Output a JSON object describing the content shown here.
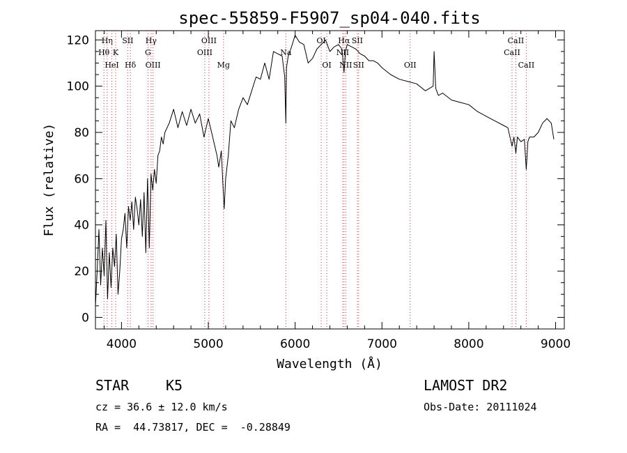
{
  "chart_data": {
    "type": "line",
    "title": "spec-55859-F5907_sp04-040.fits",
    "xlabel": "Wavelength (Å)",
    "ylabel": "Flux (relative)",
    "xlim": [
      3700,
      9100
    ],
    "ylim": [
      -5,
      124
    ],
    "x_ticks": [
      4000,
      5000,
      6000,
      7000,
      8000,
      9000
    ],
    "y_ticks": [
      0,
      20,
      40,
      60,
      80,
      100,
      120
    ],
    "grid": false,
    "series": [
      {
        "x": [
          3700,
          3720,
          3740,
          3760,
          3780,
          3800,
          3820,
          3840,
          3860,
          3880,
          3900,
          3920,
          3940,
          3960,
          3980,
          4000,
          4020,
          4040,
          4060,
          4080,
          4100,
          4120,
          4140,
          4160,
          4180,
          4200,
          4220,
          4240,
          4260,
          4280,
          4300,
          4320,
          4340,
          4360,
          4380,
          4400,
          4420,
          4440,
          4460,
          4480,
          4500,
          4550,
          4600,
          4650,
          4700,
          4750,
          4800,
          4850,
          4900,
          4950,
          5000,
          5050,
          5100,
          5120,
          5150,
          5170,
          5183,
          5200,
          5230,
          5260,
          5300,
          5350,
          5400,
          5450,
          5500,
          5550,
          5600,
          5650,
          5700,
          5750,
          5800,
          5850,
          5880,
          5893,
          5900,
          5920,
          5950,
          6000,
          6050,
          6100,
          6150,
          6200,
          6250,
          6300,
          6350,
          6400,
          6450,
          6500,
          6540,
          6563,
          6580,
          6600,
          6650,
          6700,
          6750,
          6800,
          6850,
          6900,
          6950,
          7000,
          7100,
          7200,
          7300,
          7400,
          7500,
          7590,
          7600,
          7620,
          7650,
          7700,
          7800,
          7900,
          8000,
          8100,
          8200,
          8300,
          8400,
          8450,
          8498,
          8520,
          8542,
          8560,
          8600,
          8640,
          8662,
          8680,
          8700,
          8750,
          8800,
          8850,
          8900,
          8950,
          8980
        ],
        "y": [
          5,
          20,
          38,
          14,
          30,
          18,
          42,
          8,
          28,
          13,
          30,
          22,
          36,
          10,
          20,
          34,
          38,
          45,
          30,
          48,
          42,
          50,
          38,
          52,
          47,
          40,
          51,
          35,
          54,
          28,
          60,
          30,
          62,
          55,
          64,
          58,
          70,
          72,
          78,
          75,
          80,
          84,
          90,
          82,
          89,
          83,
          90,
          84,
          88,
          78,
          86,
          78,
          70,
          65,
          72,
          56,
          47,
          60,
          70,
          85,
          82,
          90,
          95,
          92,
          98,
          104,
          103,
          110,
          103,
          115,
          114,
          113,
          104,
          84,
          108,
          113,
          116,
          122,
          119,
          118,
          110,
          112,
          116,
          118,
          120,
          115,
          117,
          118,
          116,
          106,
          115,
          118,
          117,
          116,
          114,
          113,
          111,
          111,
          110,
          108,
          105,
          103,
          102,
          101,
          98,
          100,
          115,
          99,
          96,
          97,
          94,
          93,
          92,
          89,
          87,
          85,
          83,
          82,
          74,
          78,
          71,
          78,
          76,
          77,
          64,
          76,
          78,
          78,
          80,
          84,
          86,
          84,
          77
        ]
      }
    ],
    "line_markers": [
      {
        "label": "Hη",
        "x": 3835,
        "row": 1
      },
      {
        "label": "Hθ",
        "x": 3798,
        "row": 2
      },
      {
        "label": "K",
        "x": 3933,
        "row": 2
      },
      {
        "label": "HeI",
        "x": 3889,
        "row": 3
      },
      {
        "label": "SII",
        "x": 4072,
        "row": 1
      },
      {
        "label": "Hδ",
        "x": 4102,
        "row": 3
      },
      {
        "label": "Hγ",
        "x": 4341,
        "row": 1
      },
      {
        "label": "G",
        "x": 4305,
        "row": 2
      },
      {
        "label": "OIII",
        "x": 4363,
        "row": 3
      },
      {
        "label": "OIII",
        "x": 5007,
        "row": 1
      },
      {
        "label": "OIII",
        "x": 4959,
        "row": 2
      },
      {
        "label": "Mg",
        "x": 5175,
        "row": 3
      },
      {
        "label": "Na",
        "x": 5893,
        "row": 2
      },
      {
        "label": "OI",
        "x": 6300,
        "row": 1
      },
      {
        "label": "OI",
        "x": 6364,
        "row": 3
      },
      {
        "label": "Hα",
        "x": 6563,
        "row": 1
      },
      {
        "label": "SII",
        "x": 6716,
        "row": 1
      },
      {
        "label": "NII",
        "x": 6548,
        "row": 2
      },
      {
        "label": "NII",
        "x": 6583,
        "row": 3
      },
      {
        "label": "SII",
        "x": 6731,
        "row": 3
      },
      {
        "label": "OII",
        "x": 7325,
        "row": 3
      },
      {
        "label": "CaII",
        "x": 8542,
        "row": 1
      },
      {
        "label": "CaII",
        "x": 8498,
        "row": 2
      },
      {
        "label": "CaII",
        "x": 8662,
        "row": 3
      }
    ]
  },
  "info": {
    "object_class": "STAR",
    "subclass": "K5",
    "survey": "LAMOST DR2",
    "velocity": "cz = 36.6 ± 12.0 km/s",
    "obs_date": "Obs-Date: 20111024",
    "coords": "RA =  44.73817, DEC =  -0.28849"
  }
}
